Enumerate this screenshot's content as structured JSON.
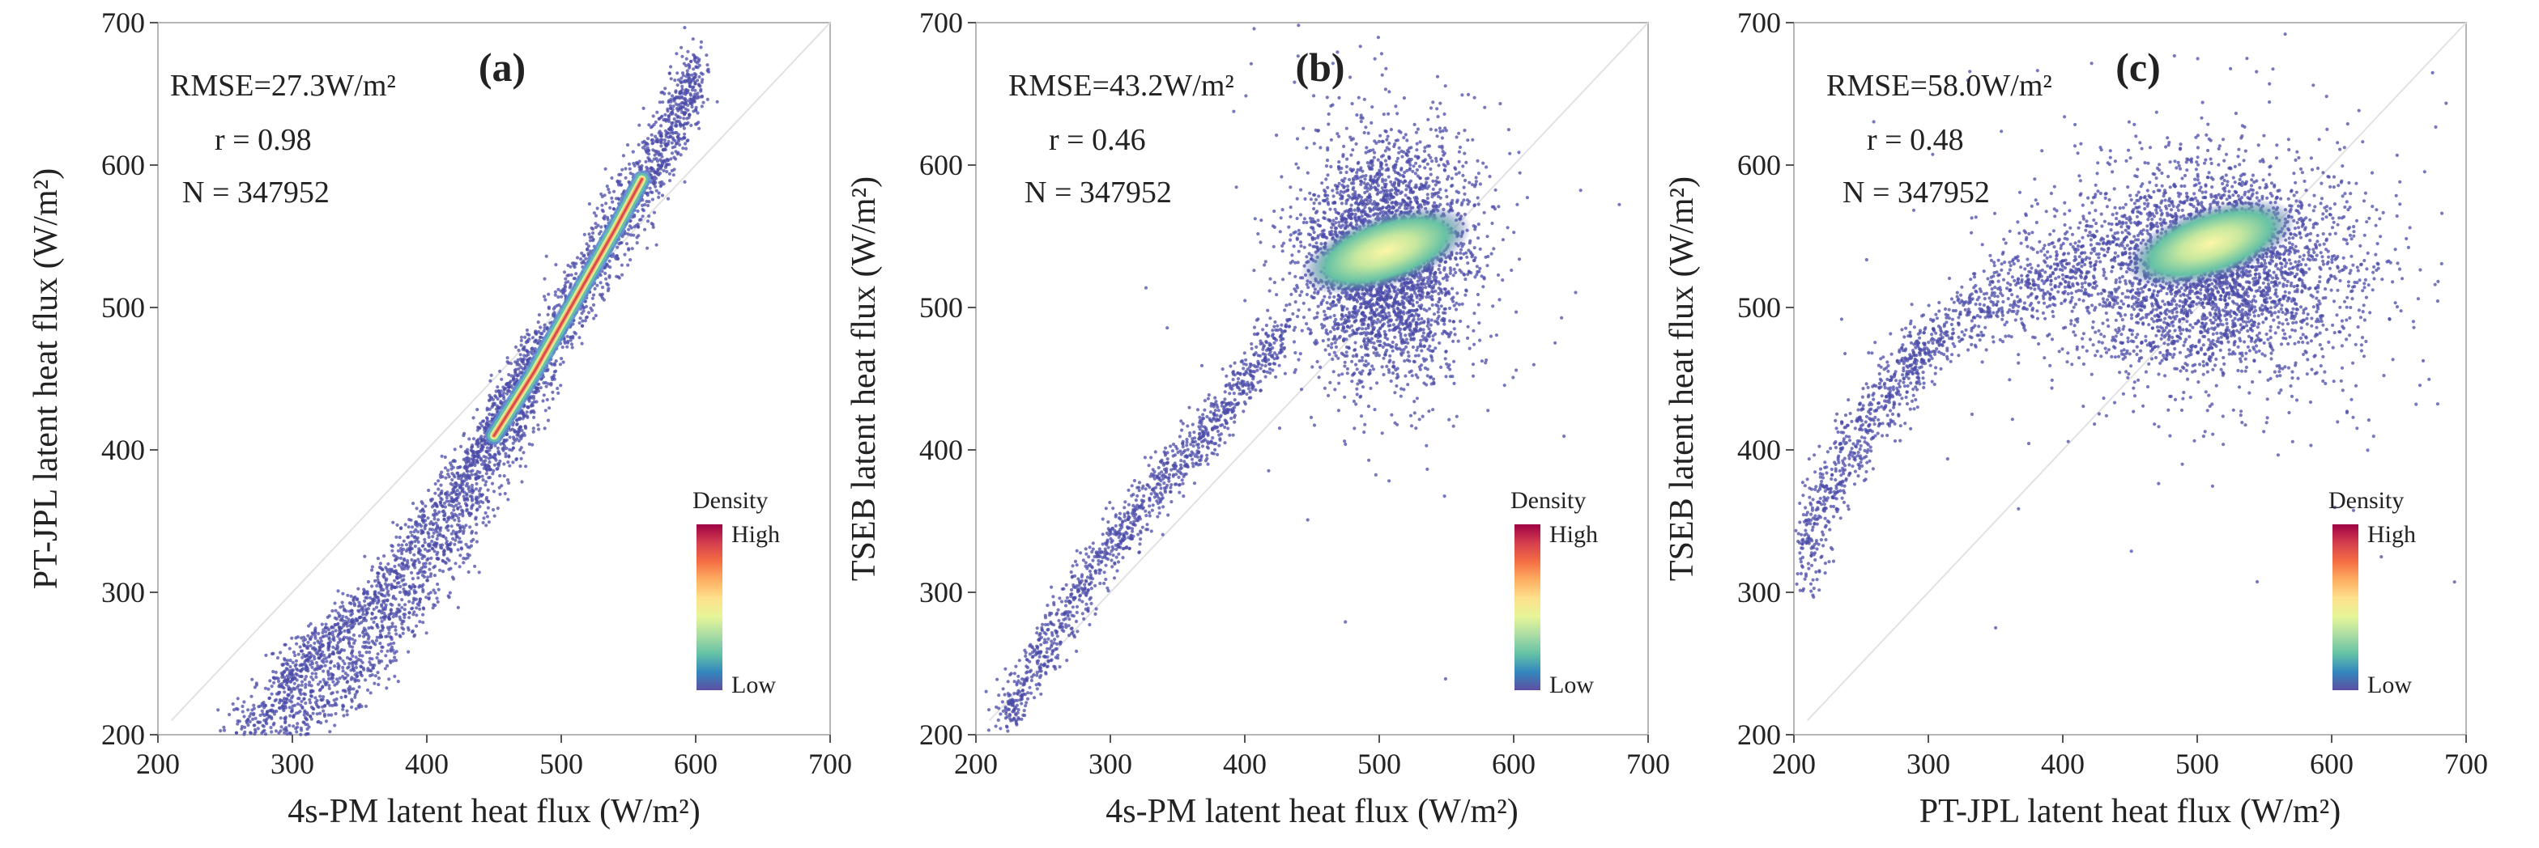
{
  "chart_data": [
    {
      "type": "scatter",
      "panel_label": "(a)",
      "xlabel": "4s-PM latent heat flux (W/m²)",
      "ylabel": "PT-JPL latent heat flux (W/m²)",
      "xlim": [
        200,
        700
      ],
      "ylim": [
        200,
        700
      ],
      "xticks": [
        "200",
        "300",
        "400",
        "500",
        "600",
        "700"
      ],
      "yticks": [
        "200",
        "300",
        "400",
        "500",
        "600",
        "700"
      ],
      "reference_line": "1:1",
      "stats": [
        "RMSE=27.3W/m²",
        "r = 0.98",
        "N = 347952"
      ],
      "density_legend": {
        "title": "Density",
        "high": "High",
        "low": "Low",
        "placement": "bottom-right"
      },
      "point_color": "#4b4ba8",
      "grid": false,
      "series": [
        {
          "structure": "dense band",
          "x": [
            262,
            300,
            340,
            380,
            420,
            450,
            470,
            490,
            510,
            530,
            550,
            570,
            590,
            600
          ],
          "y": [
            204,
            214,
            238,
            282,
            340,
            392,
            432,
            470,
            505,
            538,
            570,
            604,
            640,
            665
          ],
          "spread": 14
        },
        {
          "structure": "secondary band",
          "x": [
            290,
            330,
            370,
            410,
            450,
            480
          ],
          "y": [
            238,
            268,
            306,
            360,
            418,
            470
          ],
          "spread": 10
        },
        {
          "structure": "density core",
          "x": [
            450,
            480,
            510,
            540,
            560
          ],
          "y": [
            410,
            455,
            505,
            555,
            590
          ]
        }
      ]
    },
    {
      "type": "scatter",
      "panel_label": "(b)",
      "xlabel": "4s-PM latent heat flux (W/m²)",
      "ylabel": "TSEB latent heat flux (W/m²)",
      "xlim": [
        200,
        700
      ],
      "ylim": [
        200,
        700
      ],
      "xticks": [
        "200",
        "300",
        "400",
        "500",
        "600",
        "700"
      ],
      "yticks": [
        "200",
        "300",
        "400",
        "500",
        "600",
        "700"
      ],
      "reference_line": "1:1",
      "stats": [
        "RMSE=43.2W/m²",
        "r = 0.46",
        "N = 347952"
      ],
      "density_legend": {
        "title": "Density",
        "high": "High",
        "low": "Low",
        "placement": "bottom-right"
      },
      "point_color": "#4b4ba8",
      "grid": false,
      "series": [
        {
          "structure": "curved arm",
          "x": [
            220,
            250,
            280,
            310,
            340,
            370,
            400,
            430
          ],
          "y": [
            210,
            258,
            304,
            345,
            380,
            410,
            448,
            485
          ],
          "spread": 10
        },
        {
          "structure": "cluster",
          "center": [
            505,
            535
          ],
          "radius": [
            55,
            75
          ]
        },
        {
          "structure": "density core",
          "center": [
            505,
            540
          ]
        }
      ]
    },
    {
      "type": "scatter",
      "panel_label": "(c)",
      "xlabel": "PT-JPL latent heat flux (W/m²)",
      "ylabel": "TSEB latent heat flux (W/m²)",
      "xlim": [
        200,
        700
      ],
      "ylim": [
        200,
        700
      ],
      "xticks": [
        "200",
        "300",
        "400",
        "500",
        "600",
        "700"
      ],
      "yticks": [
        "200",
        "300",
        "400",
        "500",
        "600",
        "700"
      ],
      "reference_line": "1:1",
      "stats": [
        "RMSE=58.0W/m²",
        "r = 0.48",
        "N = 347952"
      ],
      "density_legend": {
        "title": "Density",
        "high": "High",
        "low": "Low",
        "placement": "bottom-right"
      },
      "point_color": "#4b4ba8",
      "grid": false,
      "series": [
        {
          "structure": "curved arm",
          "x": [
            205,
            220,
            240,
            260,
            280,
            300,
            330,
            360,
            390,
            420
          ],
          "y": [
            315,
            360,
            400,
            430,
            455,
            475,
            495,
            510,
            520,
            525
          ],
          "spread": 14
        },
        {
          "structure": "cluster",
          "center": [
            510,
            525
          ],
          "radius": [
            100,
            70
          ]
        },
        {
          "structure": "density core",
          "center": [
            510,
            545
          ]
        }
      ]
    }
  ]
}
